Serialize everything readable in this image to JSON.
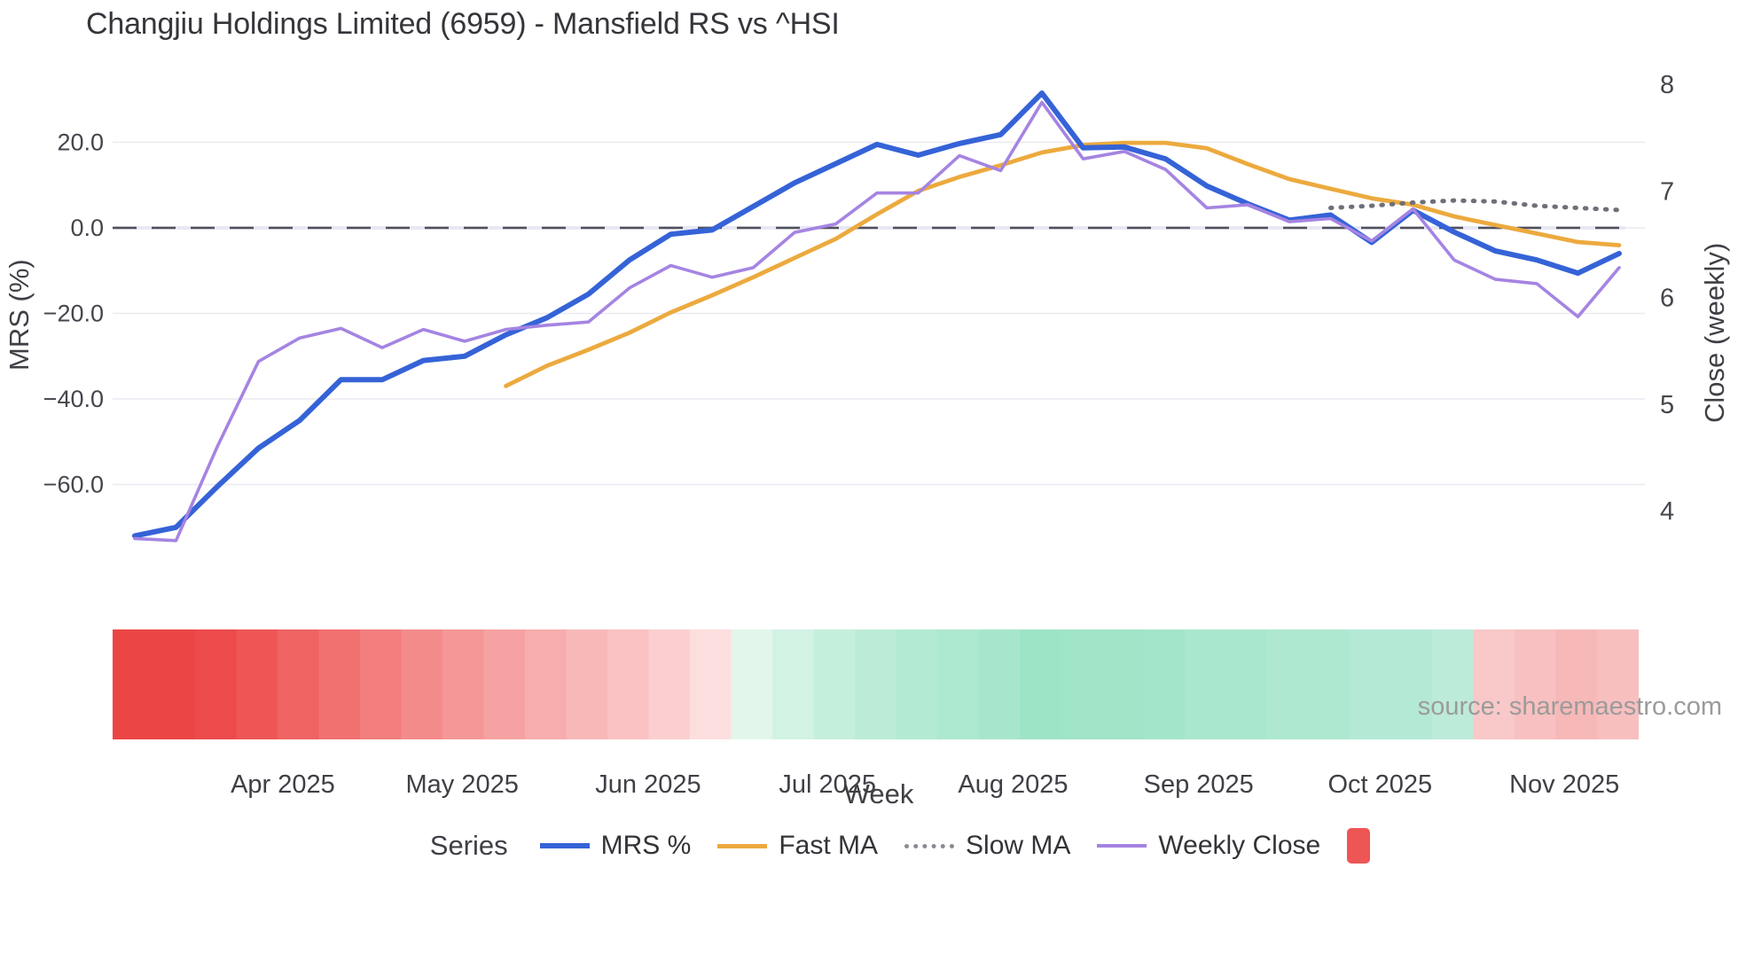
{
  "header": {
    "title": "Changjiu Holdings Limited (6959) - Mansfield RS vs ^HSI"
  },
  "source_note": "source: sharemaestro.com",
  "legend": {
    "title": "Series",
    "items": [
      {
        "label": "MRS %",
        "type": "line",
        "color": "#3563d7",
        "thickness": 6
      },
      {
        "label": "Fast MA",
        "type": "line",
        "color": "#ecaa3e",
        "thickness": 5
      },
      {
        "label": "Slow MA",
        "type": "dotted",
        "color": "#8a8a92",
        "thickness": 5
      },
      {
        "label": "Weekly Close",
        "type": "line",
        "color": "#a584e2",
        "thickness": 4
      },
      {
        "label": "",
        "type": "rect",
        "color": "#ee5555"
      }
    ]
  },
  "chart_data": {
    "type": "line",
    "title": "Changjiu Holdings Limited (6959) - Mansfield RS vs ^HSI",
    "xlabel": "Week",
    "ylabel_left": "MRS (%)",
    "ylabel_right": "Close (weekly)",
    "grid": true,
    "legend_position": "bottom",
    "x": [
      "2025-03-07",
      "2025-03-14",
      "2025-03-21",
      "2025-03-28",
      "2025-04-04",
      "2025-04-11",
      "2025-04-18",
      "2025-04-25",
      "2025-05-02",
      "2025-05-09",
      "2025-05-16",
      "2025-05-23",
      "2025-05-30",
      "2025-06-06",
      "2025-06-13",
      "2025-06-20",
      "2025-06-27",
      "2025-07-04",
      "2025-07-11",
      "2025-07-18",
      "2025-07-25",
      "2025-08-01",
      "2025-08-08",
      "2025-08-15",
      "2025-08-22",
      "2025-08-29",
      "2025-09-05",
      "2025-09-12",
      "2025-09-19",
      "2025-09-26",
      "2025-10-03",
      "2025-10-10",
      "2025-10-17",
      "2025-10-24",
      "2025-10-31",
      "2025-11-07",
      "2025-11-14"
    ],
    "x_ticks": [
      {
        "label": "Apr 2025",
        "pos": 3.59
      },
      {
        "label": "May 2025",
        "pos": 7.94
      },
      {
        "label": "Jun 2025",
        "pos": 12.45
      },
      {
        "label": "Jul 2025",
        "pos": 16.8
      },
      {
        "label": "Aug 2025",
        "pos": 21.3
      },
      {
        "label": "Sep 2025",
        "pos": 25.8
      },
      {
        "label": "Oct 2025",
        "pos": 30.2
      },
      {
        "label": "Nov 2025",
        "pos": 34.67
      }
    ],
    "left_axis": {
      "label": "MRS (%)",
      "ylim": [
        -80,
        40
      ],
      "ticks": [
        {
          "v": 20,
          "label": "20.0"
        },
        {
          "v": 0,
          "label": "0.0"
        },
        {
          "v": -20,
          "label": "−20.0"
        },
        {
          "v": -40,
          "label": "−40.0"
        },
        {
          "v": -60,
          "label": "−60.0"
        }
      ]
    },
    "right_axis": {
      "label": "Close (weekly)",
      "ylim": [
        3.5,
        8.2
      ],
      "ticks": [
        {
          "v": 8,
          "label": "8"
        },
        {
          "v": 7,
          "label": "7"
        },
        {
          "v": 6,
          "label": "6"
        },
        {
          "v": 5,
          "label": "5"
        },
        {
          "v": 4,
          "label": "4"
        }
      ]
    },
    "zero_line": {
      "axis": "left",
      "value": 0
    },
    "series": [
      {
        "name": "MRS %",
        "axis": "left",
        "color": "#3563d7",
        "width": 6,
        "style": "solid",
        "values": [
          -72,
          -70,
          -60.5,
          -51.5,
          -45,
          -35.5,
          -35.5,
          -31,
          -30,
          -25,
          -21,
          -15.5,
          -7.5,
          -1.5,
          -0.5,
          5,
          10.5,
          15,
          19.5,
          17,
          19.7,
          21.8,
          31.5,
          18.7,
          18.9,
          16.1,
          9.8,
          5.6,
          1.8,
          3,
          -3.4,
          4.1,
          -1,
          -5.4,
          -7.5,
          -10.6,
          -6
        ]
      },
      {
        "name": "Fast MA",
        "axis": "right",
        "color": "#ecaa3e",
        "width": 4.8,
        "style": "solid",
        "values": [
          null,
          null,
          null,
          null,
          null,
          null,
          null,
          null,
          null,
          5.17,
          5.36,
          5.51,
          5.67,
          5.86,
          6.02,
          6.19,
          6.37,
          6.55,
          6.78,
          7.0,
          7.13,
          7.24,
          7.36,
          7.43,
          7.45,
          7.45,
          7.4,
          7.25,
          7.11,
          7.02,
          6.93,
          6.87,
          6.76,
          6.68,
          6.6,
          6.52,
          6.49
        ]
      },
      {
        "name": "Slow MA",
        "axis": "right",
        "color": "#6f6f79",
        "width": 5,
        "style": "dotted",
        "values": [
          null,
          null,
          null,
          null,
          null,
          null,
          null,
          null,
          null,
          null,
          null,
          null,
          null,
          null,
          null,
          null,
          null,
          null,
          null,
          null,
          null,
          null,
          null,
          null,
          null,
          null,
          null,
          null,
          null,
          6.84,
          6.86,
          6.89,
          6.91,
          6.9,
          6.86,
          6.84,
          6.82
        ]
      },
      {
        "name": "Weekly Close",
        "axis": "right",
        "color": "#a584e2",
        "width": 3.6,
        "style": "solid",
        "values": [
          3.74,
          3.72,
          4.6,
          5.4,
          5.62,
          5.71,
          5.53,
          5.7,
          5.59,
          5.7,
          5.74,
          5.77,
          6.09,
          6.3,
          6.19,
          6.28,
          6.61,
          6.69,
          6.98,
          6.98,
          7.33,
          7.19,
          7.83,
          7.3,
          7.37,
          7.2,
          6.84,
          6.87,
          6.71,
          6.74,
          6.53,
          6.83,
          6.35,
          6.17,
          6.13,
          5.82,
          6.28
        ]
      }
    ],
    "heatmap_strip": {
      "description": "weekly sentiment band below chart, red=negative green=positive",
      "colors": [
        "#ec4545",
        "#ec4545",
        "#ed4b4b",
        "#ee5656",
        "#ef6363",
        "#f17070",
        "#f27e7e",
        "#f48b8b",
        "#f59797",
        "#f6a2a2",
        "#f7adad",
        "#f8b8b8",
        "#fac2c2",
        "#fbcfcf",
        "#fddede",
        "#e2f6ec",
        "#d2f2e4",
        "#c5efdd",
        "#bbecd8",
        "#b3ead3",
        "#ade8d0",
        "#a7e6cd",
        "#9de3c6",
        "#a0e4c8",
        "#a0e4c8",
        "#a3e5ca",
        "#a9e7ce",
        "#a9e7ce",
        "#aee8d1",
        "#aee8d1",
        "#b4e9d5",
        "#b4e9d5",
        "#bdebd9",
        "#f9c8c8",
        "#f8c0c0",
        "#f7b8b8",
        "#f8bfbf"
      ]
    }
  }
}
